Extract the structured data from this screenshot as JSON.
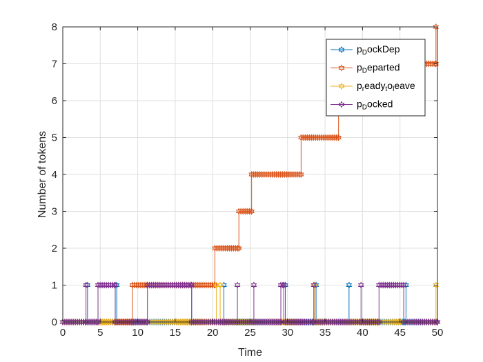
{
  "chart_data": {
    "type": "line",
    "xlabel": "Time",
    "ylabel": "Number of tokens",
    "xlim": [
      0,
      50
    ],
    "ylim": [
      0,
      8
    ],
    "xticks": [
      0,
      5,
      10,
      15,
      20,
      25,
      30,
      35,
      40,
      45,
      50
    ],
    "yticks": [
      0,
      1,
      2,
      3,
      4,
      5,
      6,
      7,
      8
    ],
    "grid": true,
    "legend_position": "top-right",
    "series": [
      {
        "name": "p_DockDep",
        "legend": {
          "main": "p",
          "sub": "D",
          "rest": "ockDep"
        },
        "color": "#0072BD",
        "marker": "hexagram",
        "points": [
          [
            0,
            0
          ],
          [
            3.3,
            0
          ],
          [
            3.3,
            1
          ],
          [
            3.3,
            0
          ],
          [
            7.2,
            0
          ],
          [
            7.2,
            1
          ],
          [
            7.2,
            0
          ],
          [
            17.2,
            0
          ],
          [
            17.2,
            1
          ],
          [
            17.2,
            0
          ],
          [
            21.5,
            0
          ],
          [
            21.5,
            1
          ],
          [
            21.5,
            0
          ],
          [
            29.7,
            0
          ],
          [
            29.7,
            1
          ],
          [
            29.7,
            0
          ],
          [
            33.8,
            0
          ],
          [
            33.8,
            1
          ],
          [
            33.8,
            0
          ],
          [
            38.2,
            0
          ],
          [
            38.2,
            1
          ],
          [
            38.2,
            0
          ],
          [
            45.8,
            0
          ],
          [
            45.8,
            1
          ],
          [
            45.8,
            0
          ],
          [
            50,
            0
          ]
        ]
      },
      {
        "name": "p_Departed",
        "legend": {
          "main": "p",
          "sub": "D",
          "rest": "eparted"
        },
        "color": "#D95319",
        "marker": "hexagram",
        "points": [
          [
            0,
            0
          ],
          [
            9.3,
            0
          ],
          [
            9.3,
            1
          ],
          [
            11.3,
            1
          ],
          [
            11.3,
            1
          ],
          [
            17.2,
            1
          ],
          [
            20.3,
            1
          ],
          [
            20.3,
            2
          ],
          [
            23.5,
            2
          ],
          [
            23.5,
            3
          ],
          [
            25.2,
            3
          ],
          [
            25.2,
            4
          ],
          [
            31.8,
            4
          ],
          [
            31.8,
            5
          ],
          [
            36.8,
            5
          ],
          [
            36.8,
            6
          ],
          [
            45.8,
            6
          ],
          [
            45.8,
            7
          ],
          [
            49.8,
            7
          ],
          [
            49.8,
            8
          ]
        ]
      },
      {
        "name": "p_ready_to_leave",
        "legend": {
          "main": "p",
          "sub": "r",
          "rest": "eady",
          "sub2": "t",
          "rest2": "o",
          "sub3": "l",
          "rest3": "eave"
        },
        "color": "#EDB120",
        "marker": "hexagram",
        "points": [
          [
            0,
            0
          ],
          [
            5,
            0
          ],
          [
            7,
            0
          ],
          [
            11.3,
            0
          ],
          [
            17,
            0
          ],
          [
            20.5,
            0
          ],
          [
            20.5,
            1
          ],
          [
            20.5,
            0
          ],
          [
            21,
            0
          ],
          [
            21,
            1
          ],
          [
            21,
            0
          ],
          [
            33.6,
            0
          ],
          [
            33.6,
            1
          ],
          [
            33.6,
            0
          ],
          [
            42.3,
            0
          ],
          [
            45.2,
            0
          ],
          [
            49.8,
            0
          ],
          [
            49.8,
            1
          ]
        ]
      },
      {
        "name": "p_Docked",
        "legend": {
          "main": "p",
          "sub": "D",
          "rest": "ocked"
        },
        "color": "#7E2F8E",
        "marker": "hexagram",
        "points": [
          [
            0,
            0
          ],
          [
            3.1,
            0
          ],
          [
            3.1,
            1
          ],
          [
            3.1,
            0
          ],
          [
            4.7,
            0
          ],
          [
            4.7,
            1
          ],
          [
            7,
            1
          ],
          [
            7,
            0
          ],
          [
            11.3,
            0
          ],
          [
            11.3,
            1
          ],
          [
            17.2,
            1
          ],
          [
            17.2,
            0
          ],
          [
            23.3,
            0
          ],
          [
            23.3,
            1
          ],
          [
            23.3,
            0
          ],
          [
            25.5,
            0
          ],
          [
            25.5,
            1
          ],
          [
            25.5,
            0
          ],
          [
            29.1,
            0
          ],
          [
            29.1,
            1
          ],
          [
            29.5,
            1
          ],
          [
            29.5,
            0
          ],
          [
            33.5,
            0
          ],
          [
            33.5,
            1
          ],
          [
            33.5,
            0
          ],
          [
            39.8,
            0
          ],
          [
            39.8,
            1
          ],
          [
            39.8,
            0
          ],
          [
            42.2,
            0
          ],
          [
            42.2,
            1
          ],
          [
            45.5,
            1
          ],
          [
            45.5,
            0
          ],
          [
            50,
            0
          ]
        ]
      }
    ]
  }
}
